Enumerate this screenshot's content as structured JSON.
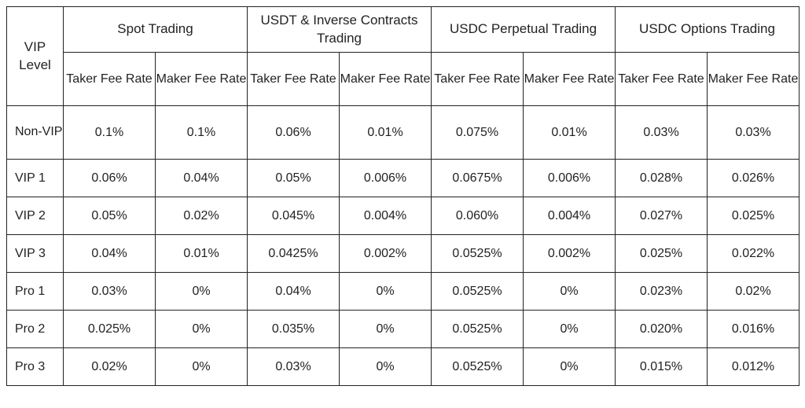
{
  "table": {
    "vip_level_header": "VIP Level",
    "groups": [
      {
        "label": "Spot Trading"
      },
      {
        "label": "USDT & Inverse Contracts Trading"
      },
      {
        "label": "USDC Perpetual Trading"
      },
      {
        "label": "USDC Options Trading"
      }
    ],
    "sub_headers": {
      "taker": "Taker Fee Rate",
      "maker": "Maker Fee Rate"
    },
    "rows": [
      {
        "level": "Non-VIP",
        "cells": [
          "0.1%",
          "0.1%",
          "0.06%",
          "0.01%",
          "0.075%",
          "0.01%",
          "0.03%",
          "0.03%"
        ]
      },
      {
        "level": "VIP 1",
        "cells": [
          "0.06%",
          "0.04%",
          "0.05%",
          "0.006%",
          "0.0675%",
          "0.006%",
          "0.028%",
          "0.026%"
        ]
      },
      {
        "level": "VIP 2",
        "cells": [
          "0.05%",
          "0.02%",
          "0.045%",
          "0.004%",
          "0.060%",
          "0.004%",
          "0.027%",
          "0.025%"
        ]
      },
      {
        "level": "VIP 3",
        "cells": [
          "0.04%",
          "0.01%",
          "0.0425%",
          "0.002%",
          "0.0525%",
          "0.002%",
          "0.025%",
          "0.022%"
        ]
      },
      {
        "level": "Pro 1",
        "cells": [
          "0.03%",
          "0%",
          "0.04%",
          "0%",
          "0.0525%",
          "0%",
          "0.023%",
          "0.02%"
        ]
      },
      {
        "level": "Pro 2",
        "cells": [
          "0.025%",
          "0%",
          "0.035%",
          "0%",
          "0.0525%",
          "0%",
          "0.020%",
          "0.016%"
        ]
      },
      {
        "level": "Pro 3",
        "cells": [
          "0.02%",
          "0%",
          "0.03%",
          "0%",
          "0.0525%",
          "0%",
          "0.015%",
          "0.012%"
        ]
      }
    ],
    "border_color": "#222222",
    "background_color": "#ffffff",
    "text_color": "#222222",
    "header_fontsize": 17,
    "subheader_fontsize": 16,
    "cell_fontsize": 16
  }
}
